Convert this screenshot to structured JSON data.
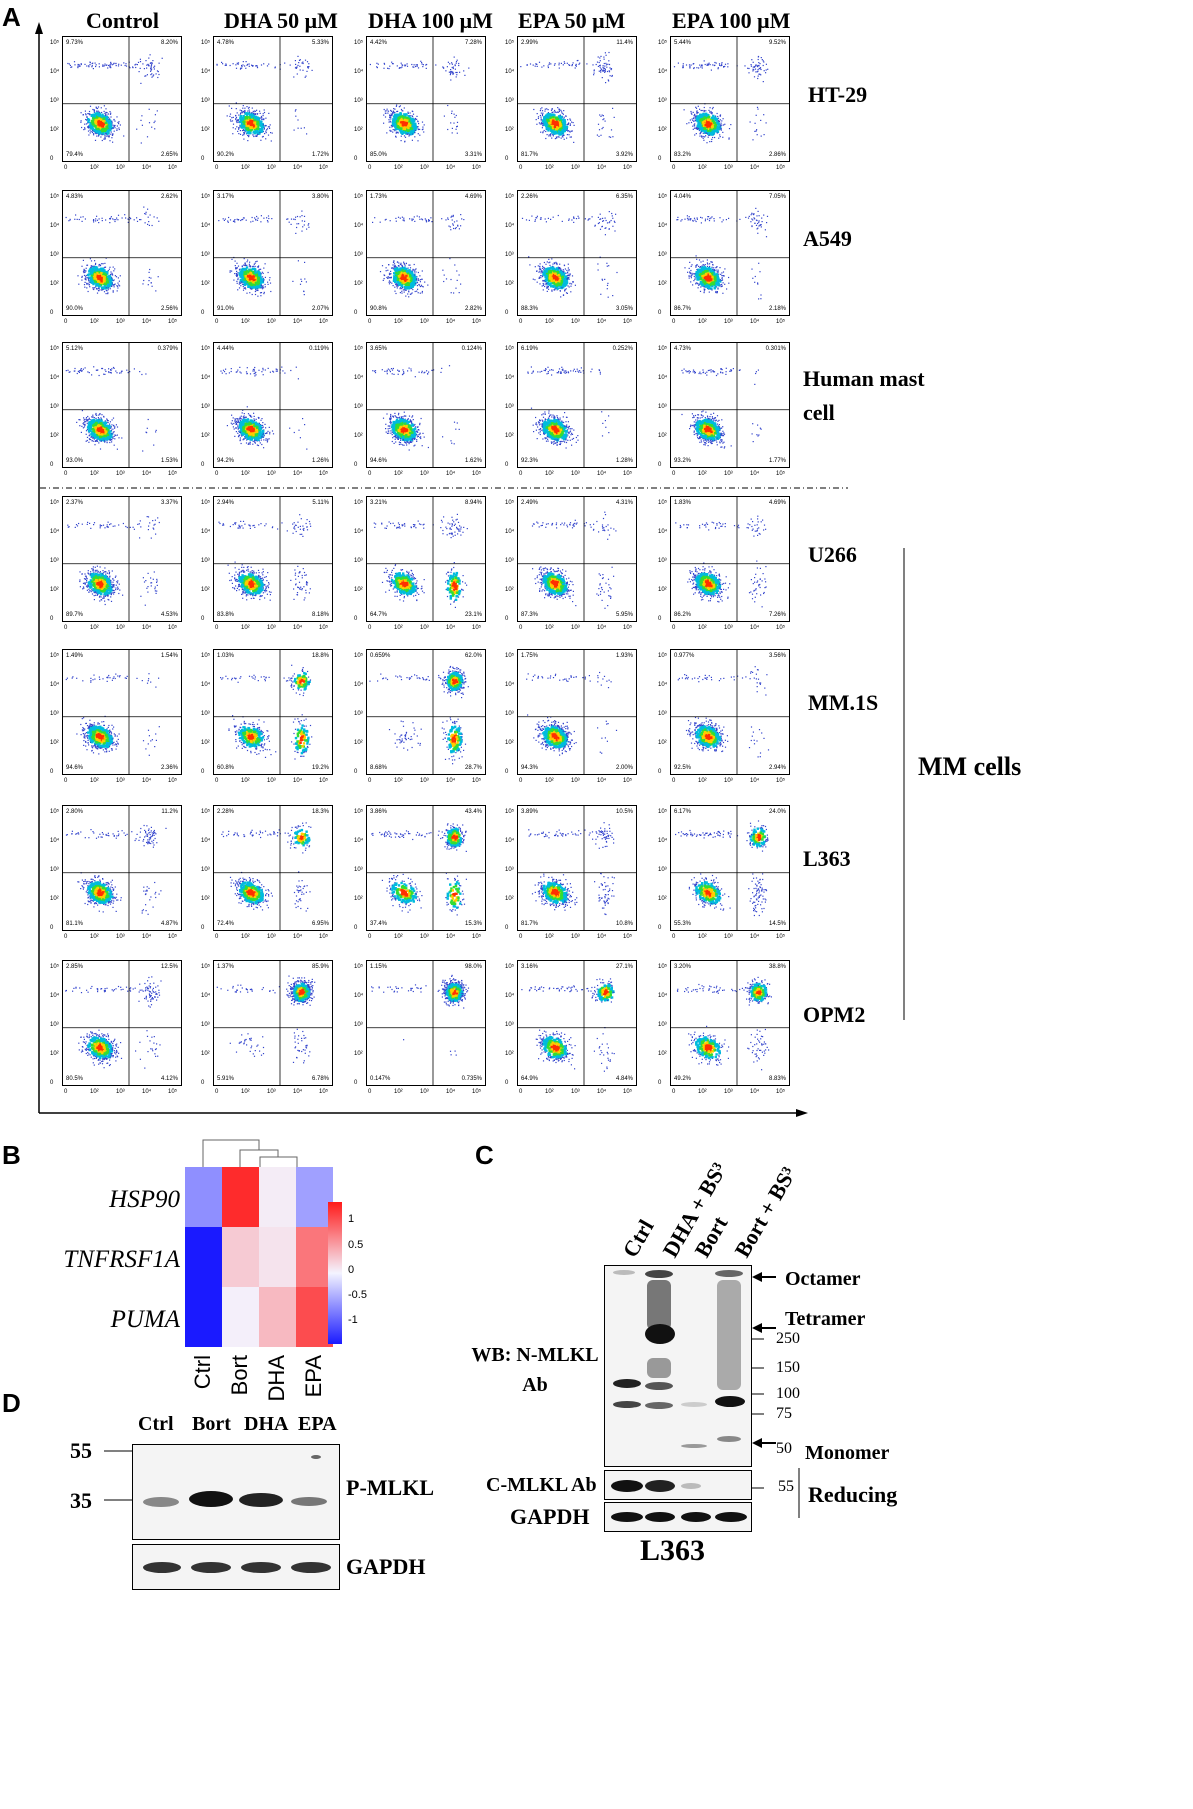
{
  "panel_a": {
    "label": "A",
    "columns": [
      "Control",
      "DHA 50 μM",
      "DHA 100 μM",
      "EPA 50 μM",
      "EPA 100 μM"
    ],
    "rows": [
      {
        "label": "HT-29",
        "q": [
          [
            "9.73%",
            "8.20%",
            "79.4%",
            "2.65%"
          ],
          [
            "4.78%",
            "5.33%",
            "90.2%",
            "1.72%"
          ],
          [
            "4.42%",
            "7.28%",
            "85.0%",
            "3.31%"
          ],
          [
            "2.99%",
            "11.4%",
            "81.7%",
            "3.92%"
          ],
          [
            "5.44%",
            "9.52%",
            "83.2%",
            "2.86%"
          ]
        ]
      },
      {
        "label": "A549",
        "q": [
          [
            "4.83%",
            "2.62%",
            "90.0%",
            "2.56%"
          ],
          [
            "3.17%",
            "3.80%",
            "91.0%",
            "2.07%"
          ],
          [
            "1.73%",
            "4.69%",
            "90.8%",
            "2.82%"
          ],
          [
            "2.26%",
            "6.35%",
            "88.3%",
            "3.05%"
          ],
          [
            "4.04%",
            "7.05%",
            "86.7%",
            "2.18%"
          ]
        ]
      },
      {
        "label": "Human mast cell",
        "q": [
          [
            "5.12%",
            "0.379%",
            "93.0%",
            "1.53%"
          ],
          [
            "4.44%",
            "0.119%",
            "94.2%",
            "1.26%"
          ],
          [
            "3.65%",
            "0.124%",
            "94.6%",
            "1.62%"
          ],
          [
            "6.19%",
            "0.252%",
            "92.3%",
            "1.28%"
          ],
          [
            "4.73%",
            "0.301%",
            "93.2%",
            "1.77%"
          ]
        ]
      },
      {
        "label": "U266",
        "q": [
          [
            "2.37%",
            "3.37%",
            "89.7%",
            "4.53%"
          ],
          [
            "2.94%",
            "5.11%",
            "83.8%",
            "8.18%"
          ],
          [
            "3.21%",
            "8.94%",
            "64.7%",
            "23.1%"
          ],
          [
            "2.49%",
            "4.31%",
            "87.3%",
            "5.95%"
          ],
          [
            "1.83%",
            "4.69%",
            "86.2%",
            "7.26%"
          ]
        ]
      },
      {
        "label": "MM.1S",
        "q": [
          [
            "1.49%",
            "1.54%",
            "94.6%",
            "2.36%"
          ],
          [
            "1.03%",
            "18.8%",
            "60.8%",
            "19.2%"
          ],
          [
            "0.659%",
            "62.0%",
            "8.68%",
            "28.7%"
          ],
          [
            "1.75%",
            "1.93%",
            "94.3%",
            "2.00%"
          ],
          [
            "0.977%",
            "3.56%",
            "92.5%",
            "2.94%"
          ]
        ]
      },
      {
        "label": "L363",
        "q": [
          [
            "2.80%",
            "11.2%",
            "81.1%",
            "4.87%"
          ],
          [
            "2.28%",
            "18.3%",
            "72.4%",
            "6.95%"
          ],
          [
            "3.86%",
            "43.4%",
            "37.4%",
            "15.3%"
          ],
          [
            "3.89%",
            "10.5%",
            "81.7%",
            "10.8%"
          ],
          [
            "6.17%",
            "24.0%",
            "55.3%",
            "14.5%"
          ]
        ]
      },
      {
        "label": "OPM2",
        "q": [
          [
            "2.85%",
            "12.5%",
            "80.5%",
            "4.12%"
          ],
          [
            "1.37%",
            "85.9%",
            "5.91%",
            "6.78%"
          ],
          [
            "1.15%",
            "98.0%",
            "0.147%",
            "0.735%"
          ],
          [
            "3.16%",
            "27.1%",
            "64.9%",
            "4.84%"
          ],
          [
            "3.20%",
            "38.8%",
            "49.2%",
            "8.83%"
          ]
        ]
      }
    ],
    "x_ticks": [
      "0",
      "10²",
      "10³",
      "10⁴",
      "10⁵"
    ],
    "y_ticks": [
      "10⁵",
      "10⁴",
      "10³",
      "10²",
      "0"
    ],
    "group_label": "MM cells"
  },
  "panel_b": {
    "label": "B",
    "genes": [
      "HSP90",
      "TNFRSF1A",
      "PUMA"
    ],
    "samples": [
      "Ctrl",
      "Bort",
      "DHA",
      "EPA"
    ],
    "matrix": [
      [
        -0.6,
        1.2,
        0.05,
        -0.5
      ],
      [
        -1.3,
        0.25,
        0.1,
        0.75
      ],
      [
        -1.3,
        0.03,
        0.35,
        1.0
      ]
    ],
    "legend_ticks": [
      "1",
      "0.5",
      "0",
      "-0.5",
      "-1"
    ],
    "colors": {
      "low": "#1a1aff",
      "mid": "#f2f2ff",
      "high": "#ff1a1a"
    }
  },
  "panel_c": {
    "label": "C",
    "lanes": [
      "Ctrl",
      "DHA + BS³",
      "Bort",
      "Bort + BS³"
    ],
    "wb_label": "WB: N-MLKL Ab",
    "c_mlkl_label": "C-MLKL Ab",
    "gapdh_label": "GAPDH",
    "mw_markers": [
      "250",
      "150",
      "100",
      "75",
      "50"
    ],
    "mw_reducing": "55",
    "annotations": [
      "Octamer",
      "Tetramer",
      "Monomer"
    ],
    "reducing_label": "Reducing",
    "cell_line": "L363"
  },
  "panel_d": {
    "label": "D",
    "lanes": [
      "Ctrl",
      "Bort",
      "DHA",
      "EPA"
    ],
    "mw_markers": [
      "55",
      "35"
    ],
    "p_mlkl_label": "P-MLKL",
    "gapdh_label": "GAPDH"
  }
}
